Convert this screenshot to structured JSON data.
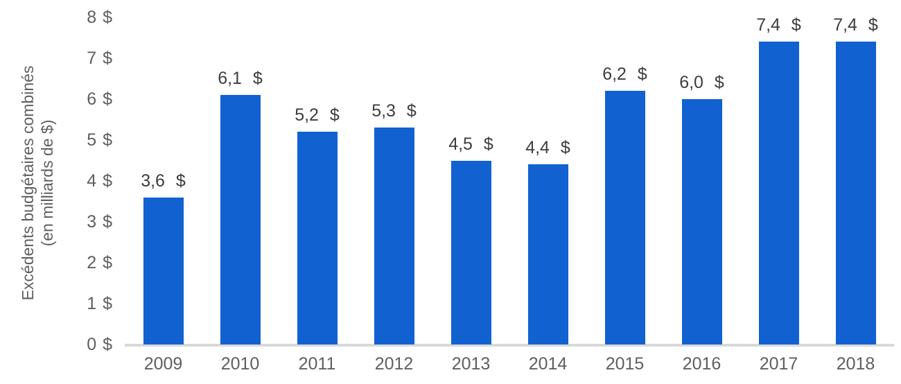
{
  "chart_data": {
    "type": "bar",
    "title": "",
    "xlabel": "",
    "ylabel": "Excédents budgétaires combinés (en milliards de $)",
    "ylabel_line1": "Excédents budgétaires combinés",
    "ylabel_line2": "(en milliards de $)",
    "categories": [
      "2009",
      "2010",
      "2011",
      "2012",
      "2013",
      "2014",
      "2015",
      "2016",
      "2017",
      "2018"
    ],
    "values": [
      3.6,
      6.1,
      5.2,
      5.3,
      4.5,
      4.4,
      6.2,
      6.0,
      7.4,
      7.4
    ],
    "bar_labels": [
      "3,6 $",
      "6,1 $",
      "5,2 $",
      "5,3 $",
      "4,5 $",
      "4,4 $",
      "6,2 $",
      "6,0 $",
      "7,4 $",
      "7,4 $"
    ],
    "y_ticks": [
      "0 $",
      "1 $",
      "2 $",
      "3 $",
      "4 $",
      "5 $",
      "6 $",
      "7 $",
      "8 $"
    ],
    "ylim": [
      0,
      8
    ],
    "grid": false,
    "legend": false,
    "colors": {
      "bar": "#1261d1",
      "axis_line": "#d9d9d9",
      "tick_labels": "#5f5f5f",
      "data_labels": "#3d3d3d",
      "background": "#ffffff"
    }
  }
}
